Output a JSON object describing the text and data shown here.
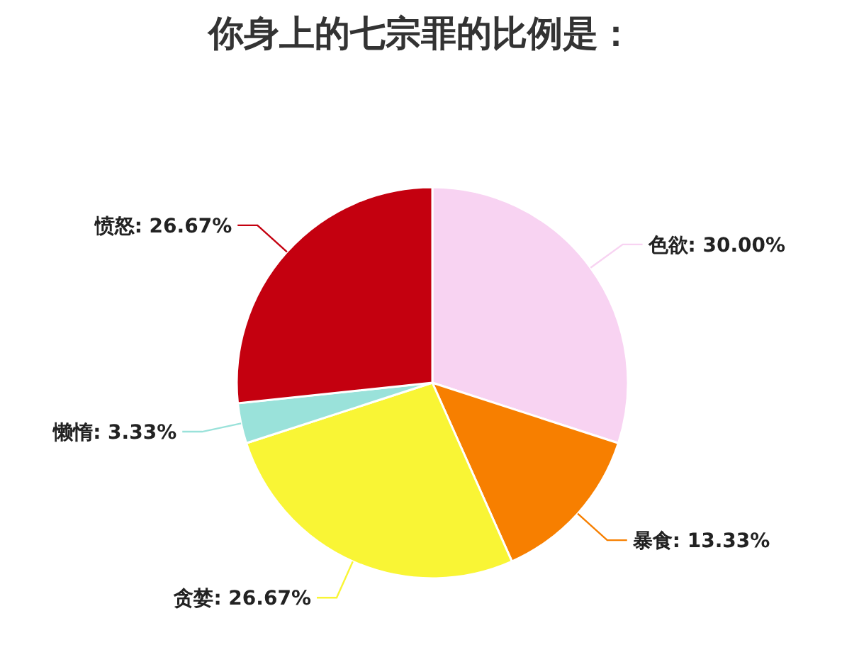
{
  "chart_data": {
    "type": "pie",
    "title": "你身上的七宗罪的比例是：",
    "categories": [
      "色欲",
      "暴食",
      "贪婪",
      "懒惰",
      "愤怒"
    ],
    "values": [
      30.0,
      13.33,
      26.67,
      3.33,
      26.67
    ],
    "value_labels": [
      "30.00%",
      "13.33%",
      "26.67%",
      "3.33%",
      "26.67%"
    ],
    "colors": [
      "#f8d3f2",
      "#f77f00",
      "#f9f535",
      "#9ae2da",
      "#c4000f"
    ]
  }
}
